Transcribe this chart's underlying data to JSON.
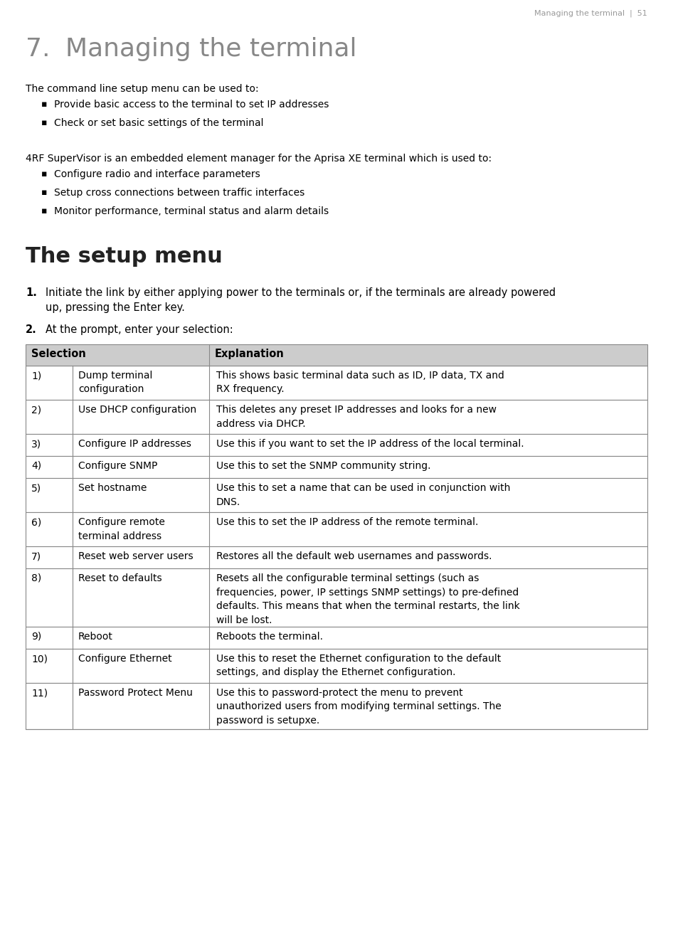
{
  "page_header": "Managing the terminal  |  51",
  "chapter_number": "7.",
  "chapter_title": "Managing the terminal",
  "intro_text": "The command line setup menu can be used to:",
  "intro_bullets": [
    "Provide basic access to the terminal to set IP addresses",
    "Check or set basic settings of the terminal"
  ],
  "supervisor_text": "4RF SuperVisor is an embedded element manager for the Aprisa XE terminal which is used to:",
  "supervisor_bullets": [
    "Configure radio and interface parameters",
    "Setup cross connections between traffic interfaces",
    "Monitor performance, terminal status and alarm details"
  ],
  "section_title": "The setup menu",
  "step1_num": "1.",
  "step1_text": "Initiate the link by either applying power to the terminals or, if the terminals are already powered\nup, pressing the Enter key.",
  "step2_num": "2.",
  "step2_text": "At the prompt, enter your selection:",
  "table_header": [
    "Selection",
    "Explanation"
  ],
  "table_rows": [
    [
      "1)",
      "Dump terminal\nconfiguration",
      "This shows basic terminal data such as ID, IP data, TX and\nRX frequency."
    ],
    [
      "2)",
      "Use DHCP configuration",
      "This deletes any preset IP addresses and looks for a new\naddress via DHCP."
    ],
    [
      "3)",
      "Configure IP addresses",
      "Use this if you want to set the IP address of the local terminal."
    ],
    [
      "4)",
      "Configure SNMP",
      "Use this to set the SNMP community string."
    ],
    [
      "5)",
      "Set hostname",
      "Use this to set a name that can be used in conjunction with\nDNS."
    ],
    [
      "6)",
      "Configure remote\nterminal address",
      "Use this to set the IP address of the remote terminal."
    ],
    [
      "7)",
      "Reset web server users",
      "Restores all the default web usernames and passwords."
    ],
    [
      "8)",
      "Reset to defaults",
      "Resets all the configurable terminal settings (such as\nfrequencies, power, IP settings SNMP settings) to pre-defined\ndefaults. This means that when the terminal restarts, the link\nwill be lost."
    ],
    [
      "9)",
      "Reboot",
      "Reboots the terminal."
    ],
    [
      "10)",
      "Configure Ethernet",
      "Use this to reset the Ethernet configuration to the default\nsettings, and display the Ethernet configuration."
    ],
    [
      "11)",
      "Password Protect Menu",
      "Use this to password-protect the menu to prevent\nunauthorized users from modifying terminal settings. The\npassword is setupxe."
    ]
  ],
  "background_color": "#ffffff",
  "text_color": "#000000",
  "header_color": "#999999",
  "chapter_title_color": "#888888",
  "section_title_color": "#222222",
  "table_header_bg": "#cccccc",
  "table_border_color": "#888888"
}
